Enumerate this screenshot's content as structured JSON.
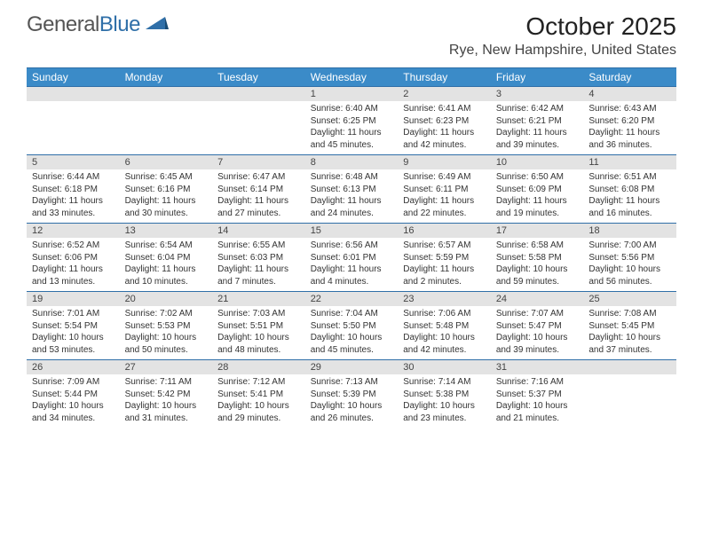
{
  "logo": {
    "text1": "General",
    "text2": "Blue"
  },
  "title": "October 2025",
  "location": "Rye, New Hampshire, United States",
  "colors": {
    "header_bg": "#3b8bc8",
    "header_text": "#ffffff",
    "row_divider": "#2f6fa8",
    "daynum_bg": "#e3e3e3",
    "text": "#333333",
    "logo_gray": "#555555",
    "logo_blue": "#2f6fa8",
    "background": "#ffffff"
  },
  "typography": {
    "title_fontsize": 28,
    "location_fontsize": 16,
    "weekday_fontsize": 12,
    "daynum_fontsize": 11,
    "content_fontsize": 10,
    "font_family": "Arial"
  },
  "weekdays": [
    "Sunday",
    "Monday",
    "Tuesday",
    "Wednesday",
    "Thursday",
    "Friday",
    "Saturday"
  ],
  "weeks": [
    [
      null,
      null,
      null,
      {
        "d": "1",
        "sr": "6:40 AM",
        "ss": "6:25 PM",
        "dl1": "Daylight: 11 hours",
        "dl2": "and 45 minutes."
      },
      {
        "d": "2",
        "sr": "6:41 AM",
        "ss": "6:23 PM",
        "dl1": "Daylight: 11 hours",
        "dl2": "and 42 minutes."
      },
      {
        "d": "3",
        "sr": "6:42 AM",
        "ss": "6:21 PM",
        "dl1": "Daylight: 11 hours",
        "dl2": "and 39 minutes."
      },
      {
        "d": "4",
        "sr": "6:43 AM",
        "ss": "6:20 PM",
        "dl1": "Daylight: 11 hours",
        "dl2": "and 36 minutes."
      }
    ],
    [
      {
        "d": "5",
        "sr": "6:44 AM",
        "ss": "6:18 PM",
        "dl1": "Daylight: 11 hours",
        "dl2": "and 33 minutes."
      },
      {
        "d": "6",
        "sr": "6:45 AM",
        "ss": "6:16 PM",
        "dl1": "Daylight: 11 hours",
        "dl2": "and 30 minutes."
      },
      {
        "d": "7",
        "sr": "6:47 AM",
        "ss": "6:14 PM",
        "dl1": "Daylight: 11 hours",
        "dl2": "and 27 minutes."
      },
      {
        "d": "8",
        "sr": "6:48 AM",
        "ss": "6:13 PM",
        "dl1": "Daylight: 11 hours",
        "dl2": "and 24 minutes."
      },
      {
        "d": "9",
        "sr": "6:49 AM",
        "ss": "6:11 PM",
        "dl1": "Daylight: 11 hours",
        "dl2": "and 22 minutes."
      },
      {
        "d": "10",
        "sr": "6:50 AM",
        "ss": "6:09 PM",
        "dl1": "Daylight: 11 hours",
        "dl2": "and 19 minutes."
      },
      {
        "d": "11",
        "sr": "6:51 AM",
        "ss": "6:08 PM",
        "dl1": "Daylight: 11 hours",
        "dl2": "and 16 minutes."
      }
    ],
    [
      {
        "d": "12",
        "sr": "6:52 AM",
        "ss": "6:06 PM",
        "dl1": "Daylight: 11 hours",
        "dl2": "and 13 minutes."
      },
      {
        "d": "13",
        "sr": "6:54 AM",
        "ss": "6:04 PM",
        "dl1": "Daylight: 11 hours",
        "dl2": "and 10 minutes."
      },
      {
        "d": "14",
        "sr": "6:55 AM",
        "ss": "6:03 PM",
        "dl1": "Daylight: 11 hours",
        "dl2": "and 7 minutes."
      },
      {
        "d": "15",
        "sr": "6:56 AM",
        "ss": "6:01 PM",
        "dl1": "Daylight: 11 hours",
        "dl2": "and 4 minutes."
      },
      {
        "d": "16",
        "sr": "6:57 AM",
        "ss": "5:59 PM",
        "dl1": "Daylight: 11 hours",
        "dl2": "and 2 minutes."
      },
      {
        "d": "17",
        "sr": "6:58 AM",
        "ss": "5:58 PM",
        "dl1": "Daylight: 10 hours",
        "dl2": "and 59 minutes."
      },
      {
        "d": "18",
        "sr": "7:00 AM",
        "ss": "5:56 PM",
        "dl1": "Daylight: 10 hours",
        "dl2": "and 56 minutes."
      }
    ],
    [
      {
        "d": "19",
        "sr": "7:01 AM",
        "ss": "5:54 PM",
        "dl1": "Daylight: 10 hours",
        "dl2": "and 53 minutes."
      },
      {
        "d": "20",
        "sr": "7:02 AM",
        "ss": "5:53 PM",
        "dl1": "Daylight: 10 hours",
        "dl2": "and 50 minutes."
      },
      {
        "d": "21",
        "sr": "7:03 AM",
        "ss": "5:51 PM",
        "dl1": "Daylight: 10 hours",
        "dl2": "and 48 minutes."
      },
      {
        "d": "22",
        "sr": "7:04 AM",
        "ss": "5:50 PM",
        "dl1": "Daylight: 10 hours",
        "dl2": "and 45 minutes."
      },
      {
        "d": "23",
        "sr": "7:06 AM",
        "ss": "5:48 PM",
        "dl1": "Daylight: 10 hours",
        "dl2": "and 42 minutes."
      },
      {
        "d": "24",
        "sr": "7:07 AM",
        "ss": "5:47 PM",
        "dl1": "Daylight: 10 hours",
        "dl2": "and 39 minutes."
      },
      {
        "d": "25",
        "sr": "7:08 AM",
        "ss": "5:45 PM",
        "dl1": "Daylight: 10 hours",
        "dl2": "and 37 minutes."
      }
    ],
    [
      {
        "d": "26",
        "sr": "7:09 AM",
        "ss": "5:44 PM",
        "dl1": "Daylight: 10 hours",
        "dl2": "and 34 minutes."
      },
      {
        "d": "27",
        "sr": "7:11 AM",
        "ss": "5:42 PM",
        "dl1": "Daylight: 10 hours",
        "dl2": "and 31 minutes."
      },
      {
        "d": "28",
        "sr": "7:12 AM",
        "ss": "5:41 PM",
        "dl1": "Daylight: 10 hours",
        "dl2": "and 29 minutes."
      },
      {
        "d": "29",
        "sr": "7:13 AM",
        "ss": "5:39 PM",
        "dl1": "Daylight: 10 hours",
        "dl2": "and 26 minutes."
      },
      {
        "d": "30",
        "sr": "7:14 AM",
        "ss": "5:38 PM",
        "dl1": "Daylight: 10 hours",
        "dl2": "and 23 minutes."
      },
      {
        "d": "31",
        "sr": "7:16 AM",
        "ss": "5:37 PM",
        "dl1": "Daylight: 10 hours",
        "dl2": "and 21 minutes."
      },
      null
    ]
  ],
  "labels": {
    "sunrise": "Sunrise:",
    "sunset": "Sunset:"
  }
}
